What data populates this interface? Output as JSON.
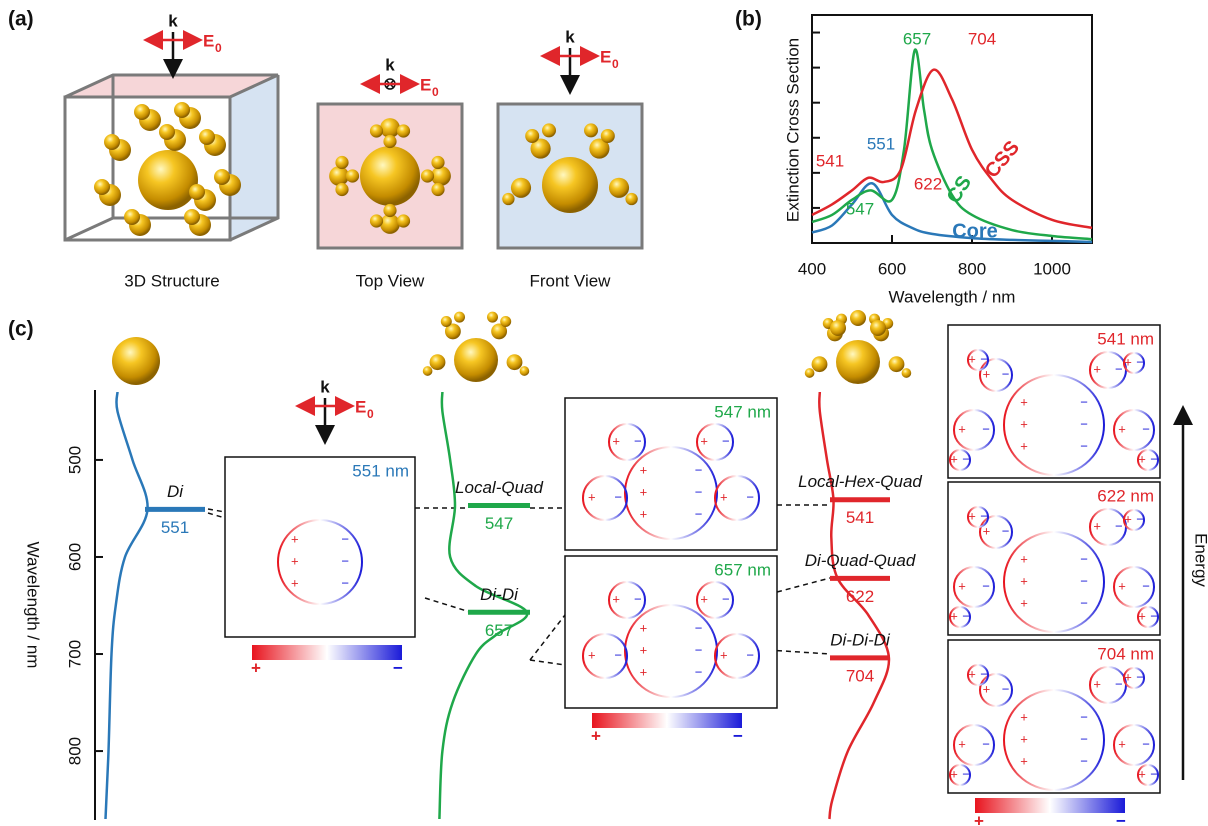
{
  "panel_a": {
    "label": "(a)",
    "k": "k",
    "E": "E",
    "E_sub": "0",
    "captions": [
      "3D Structure",
      "Top View",
      "Front View"
    ]
  },
  "chart_data": {
    "type": "line",
    "label": "(b)",
    "xlabel": "Wavelength / nm",
    "ylabel": "Extinction Cross Section",
    "xlim": [
      400,
      1100
    ],
    "xticks": [
      400,
      600,
      800,
      1000
    ],
    "ylim": [
      0,
      6.5
    ],
    "yticks": [
      0,
      1,
      2,
      3,
      4,
      5,
      6
    ],
    "series": [
      {
        "name": "Core",
        "color": "#2a78b8",
        "x": [
          400,
          450,
          500,
          551,
          600,
          650,
          700,
          800,
          900,
          1000,
          1100
        ],
        "values": [
          0.3,
          0.5,
          1.1,
          1.7,
          0.8,
          0.43,
          0.26,
          0.14,
          0.09,
          0.06,
          0.03
        ]
      },
      {
        "name": "CS",
        "color": "#1fa84a",
        "x": [
          400,
          450,
          500,
          547,
          600,
          630,
          657,
          680,
          700,
          750,
          800,
          900,
          1000,
          1100
        ],
        "values": [
          0.6,
          0.8,
          1.23,
          1.5,
          1.23,
          2.66,
          5.5,
          3.8,
          2.66,
          1.37,
          0.8,
          0.37,
          0.2,
          0.11
        ]
      },
      {
        "name": "CSS",
        "color": "#e0262b",
        "x": [
          400,
          450,
          500,
          541,
          580,
          622,
          660,
          704,
          750,
          800,
          850,
          900,
          1000,
          1100
        ],
        "values": [
          0.8,
          1.1,
          1.5,
          1.86,
          1.74,
          2.09,
          3.8,
          4.94,
          4.1,
          2.66,
          1.8,
          1.23,
          0.66,
          0.43
        ]
      }
    ],
    "annotations": [
      "657",
      "704",
      "551",
      "541",
      "622",
      "547"
    ]
  },
  "panel_c": {
    "label": "(c)",
    "ylabel": "Wavelength / nm",
    "ylim": [
      430,
      870
    ],
    "yticks": [
      500,
      600,
      700,
      800
    ],
    "energy": "Energy",
    "levels": [
      {
        "name": "Di",
        "value": 551,
        "color": "#2a78b8"
      },
      {
        "name": "Local-Quad",
        "value": 547,
        "color": "#1fa84a"
      },
      {
        "name": "Di-Di",
        "value": 657,
        "color": "#1fa84a"
      },
      {
        "name": "Local-Hex-Quad",
        "value": 541,
        "color": "#e0262b"
      },
      {
        "name": "Di-Quad-Quad",
        "value": 622,
        "color": "#e0262b"
      },
      {
        "name": "Di-Di-Di",
        "value": 704,
        "color": "#e0262b"
      }
    ],
    "maps": [
      "551 nm",
      "547 nm",
      "657 nm",
      "541 nm",
      "622 nm",
      "704 nm"
    ],
    "plus": "+",
    "minus": "−"
  }
}
